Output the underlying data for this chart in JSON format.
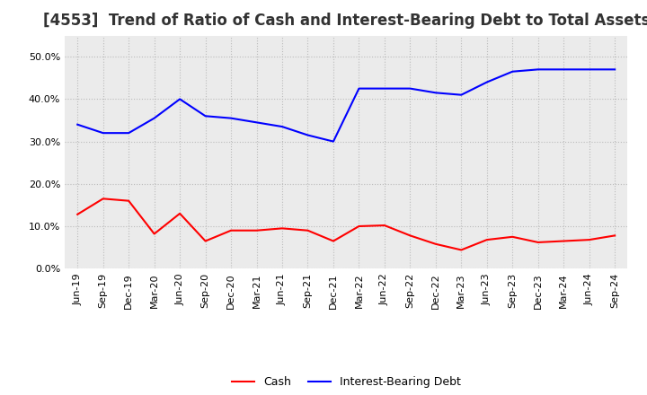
{
  "title": "[4553]  Trend of Ratio of Cash and Interest-Bearing Debt to Total Assets",
  "labels": [
    "Jun-19",
    "Sep-19",
    "Dec-19",
    "Mar-20",
    "Jun-20",
    "Sep-20",
    "Dec-20",
    "Mar-21",
    "Jun-21",
    "Sep-21",
    "Dec-21",
    "Mar-22",
    "Jun-22",
    "Sep-22",
    "Dec-22",
    "Mar-23",
    "Jun-23",
    "Sep-23",
    "Dec-23",
    "Mar-24",
    "Jun-24",
    "Sep-24"
  ],
  "cash": [
    0.128,
    0.165,
    0.16,
    0.082,
    0.13,
    0.065,
    0.09,
    0.09,
    0.095,
    0.09,
    0.065,
    0.1,
    0.102,
    0.078,
    0.058,
    0.044,
    0.068,
    0.075,
    0.062,
    0.065,
    0.068,
    0.078
  ],
  "ibd": [
    0.34,
    0.32,
    0.32,
    0.355,
    0.4,
    0.36,
    0.355,
    0.345,
    0.335,
    0.315,
    0.3,
    0.425,
    0.425,
    0.425,
    0.415,
    0.41,
    0.44,
    0.465,
    0.47,
    0.47,
    0.47,
    0.47
  ],
  "cash_color": "#ff0000",
  "ibd_color": "#0000ff",
  "bg_color": "#ffffff",
  "plot_bg_color": "#ebebeb",
  "ylim": [
    0.0,
    0.55
  ],
  "yticks": [
    0.0,
    0.1,
    0.2,
    0.3,
    0.4,
    0.5
  ],
  "legend_cash": "Cash",
  "legend_ibd": "Interest-Bearing Debt",
  "grid_color": "#bbbbbb",
  "title_fontsize": 12,
  "axis_fontsize": 8,
  "legend_fontsize": 9,
  "line_width": 1.5
}
